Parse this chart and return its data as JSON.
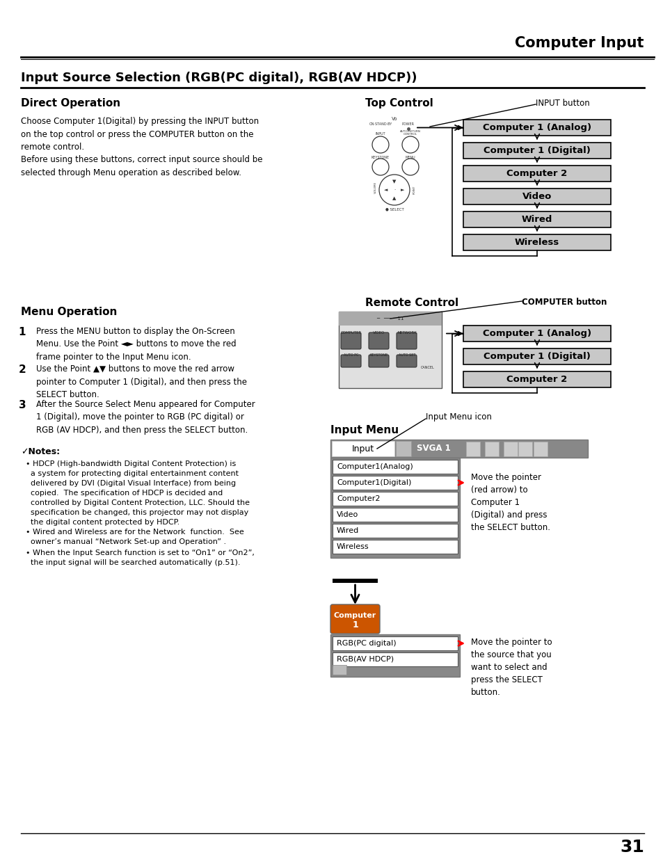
{
  "page_title": "Computer Input",
  "section_title": "Input Source Selection (RGB(PC digital), RGB(AV HDCP))",
  "subsection1": "Direct Operation",
  "subsection2": "Menu Operation",
  "direct_op_text": "Choose Computer 1(Digital) by pressing the INPUT button\non the top control or press the COMPUTER button on the\nremote control.\nBefore using these buttons, correct input source should be\nselected through Menu operation as described below.",
  "top_control_label": "Top Control",
  "input_button_label": "INPUT button",
  "remote_control_label": "Remote Control",
  "computer_button_label": "COMPUTER button",
  "input_menu_label": "Input Menu",
  "input_menu_icon_label": "Input Menu icon",
  "flow_boxes_top": [
    "Computer 1 (Analog)",
    "Computer 1 (Digital)",
    "Computer 2",
    "Video",
    "Wired",
    "Wireless"
  ],
  "flow_boxes_remote": [
    "Computer 1 (Analog)",
    "Computer 1 (Digital)",
    "Computer 2"
  ],
  "menu_items": [
    "Computer1(Analog)",
    "Computer1(Digital)",
    "Computer2",
    "Video",
    "Wired",
    "Wireless"
  ],
  "menu_step1": "Press the MENU button to display the On-Screen\nMenu. Use the Point ◄► buttons to move the red\nframe pointer to the Input Menu icon.",
  "menu_step2": "Use the Point ▲▼ buttons to move the red arrow\npointer to Computer 1 (Digital), and then press the\nSELECT button.",
  "menu_step3": "After the Source Select Menu appeared for Computer\n1 (Digital), move the pointer to RGB (PC digital) or\nRGB (AV HDCP), and then press the SELECT button.",
  "notes_title": "✓Notes:",
  "note1": "  • HDCP (High-bandwidth Digital Content Protection) is\n    a system for protecting digital entertainment content\n    delivered by DVI (Digital Visual Interface) from being\n    copied.  The specification of HDCP is decided and\n    controlled by Digital Content Protection, LLC. Should the\n    specification be changed, this projector may not display\n    the digital content protected by HDCP.",
  "note2": "  • Wired and Wireless are for the Network  function.  See\n    owner’s manual “Network Set-up and Operation” .",
  "note3": "  • When the Input Search function is set to “On1” or “On2”,\n    the input signal will be searched automatically (p.51).",
  "move_pointer_text1": "Move the pointer\n(red arrow) to\nComputer 1\n(Digital) and press\nthe SELECT button.",
  "move_pointer_text2": "Move the pointer to\nthe source that you\nwant to select and\npress the SELECT\nbutton.",
  "rgb_items": [
    "RGB(PC digital)",
    "RGB(AV HDCP)"
  ],
  "page_number": "31",
  "bg_color": "#ffffff",
  "box_fill_color": "#c8c8c8",
  "box_border_color": "#000000"
}
